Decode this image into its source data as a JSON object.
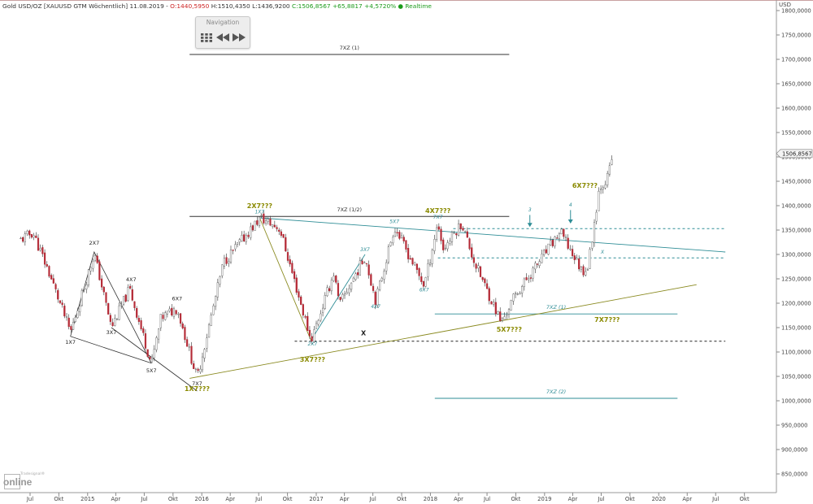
{
  "header": {
    "instrument": "Gold USD/OZ [XAUUSD GTM Wöchentlich] 11.08.2019 -",
    "open": "O:1440,5950",
    "high": "H:1510,4350",
    "low": "L:1436,9200",
    "close": "C:1506,8567",
    "change": "+65,8817",
    "change_pct": "+4,5720%",
    "realtime": "● Realtime"
  },
  "navigation": {
    "title": "Navigation"
  },
  "watermark": {
    "top": "Tradesignal®",
    "main": "online"
  },
  "colors": {
    "up": "#ffffff",
    "down": "#b42a36",
    "wick": "#333333",
    "olive": "#8a8a20",
    "teal": "#2e8d96",
    "label_olive": "#8a8a00"
  },
  "chart_data": {
    "type": "candlestick",
    "currency_label": "USD",
    "y_axis_ticks": [
      "1800,0000",
      "1750,0000",
      "1700,0000",
      "1650,0000",
      "1600,0000",
      "1550,0000",
      "1500,0000",
      "1450,0000",
      "1400,0000",
      "1350,0000",
      "1300,0000",
      "1250,0000",
      "1200,0000",
      "1150,0000",
      "1100,0000",
      "1050,0000",
      "1000,0000",
      "950,0000",
      "900,0000",
      "850,0000"
    ],
    "x_axis_ticks": [
      "Jul",
      "Okt",
      "2015",
      "Apr",
      "Jul",
      "Okt",
      "2016",
      "Apr",
      "Jul",
      "Okt",
      "2017",
      "Apr",
      "Jul",
      "Okt",
      "2018",
      "Apr",
      "Jul",
      "Okt",
      "2019",
      "Apr",
      "Jul",
      "Okt",
      "2020",
      "Apr",
      "Jul",
      "Okt"
    ],
    "last_price_label": "1506,8567",
    "price_path": [
      [
        "2014-06-01",
        1330
      ],
      [
        "2014-07-10",
        1345
      ],
      [
        "2014-09-01",
        1260
      ],
      [
        "2014-11-07",
        1140
      ],
      [
        "2015-01-22",
        1302
      ],
      [
        "2015-03-18",
        1150
      ],
      [
        "2015-05-15",
        1230
      ],
      [
        "2015-07-24",
        1075
      ],
      [
        "2015-08-24",
        1170
      ],
      [
        "2015-10-14",
        1190
      ],
      [
        "2015-12-17",
        1046
      ],
      [
        "2016-03-10",
        1283
      ],
      [
        "2016-07-06",
        1375
      ],
      [
        "2016-09-07",
        1352
      ],
      [
        "2016-12-15",
        1124
      ],
      [
        "2017-02-27",
        1263
      ],
      [
        "2017-03-15",
        1195
      ],
      [
        "2017-06-06",
        1296
      ],
      [
        "2017-07-10",
        1205
      ],
      [
        "2017-09-08",
        1357
      ],
      [
        "2017-12-12",
        1236
      ],
      [
        "2018-01-25",
        1366
      ],
      [
        "2018-02-10",
        1310
      ],
      [
        "2018-04-11",
        1365
      ],
      [
        "2018-05-21",
        1285
      ],
      [
        "2018-08-16",
        1160
      ],
      [
        "2018-09-25",
        1212
      ],
      [
        "2019-02-20",
        1346
      ],
      [
        "2019-05-01",
        1266
      ],
      [
        "2019-05-20",
        1275
      ],
      [
        "2019-06-25",
        1438
      ],
      [
        "2019-07-20",
        1455
      ],
      [
        "2019-08-11",
        1510
      ]
    ],
    "horizontal_lines": [
      {
        "label": "7XZ (1)",
        "y": 1710,
        "x_from": "2015-11-23",
        "x_to": "2018-09-10",
        "style": "solid"
      },
      {
        "label": "7XZ (1/2)",
        "y": 1378,
        "x_from": "2015-11-23",
        "x_to": "2018-09-10",
        "style": "solid"
      },
      {
        "label": "",
        "y": 1353,
        "x_from": "2018-03-15",
        "x_to": "2020-08-01",
        "style": "dashed"
      },
      {
        "label": "",
        "y": 1293,
        "x_from": "2018-01-25",
        "x_to": "2020-08-01",
        "style": "dashed"
      },
      {
        "label": "",
        "y": 1122,
        "x_from": "2016-10-24",
        "x_to": "2020-08-01",
        "style": "dashed"
      },
      {
        "label": "7XZ (1)",
        "y": 1178,
        "x_from": "2018-01-15",
        "x_to": "2020-03-01",
        "style": "solid"
      },
      {
        "label": "7XZ (2)",
        "y": 1005,
        "x_from": "2018-01-15",
        "x_to": "2020-03-01",
        "style": "solid"
      }
    ],
    "trend_lines": [
      {
        "from": [
          "2016-07-04",
          1375
        ],
        "to": [
          "2020-08-01",
          1305
        ]
      },
      {
        "from": [
          "2015-11-23",
          1046
        ],
        "to": [
          "2020-05-01",
          1238
        ]
      }
    ],
    "annotations_major": [
      {
        "text": "2X7???",
        "x": "2016-07-04",
        "y": 1395
      },
      {
        "text": "4X7???",
        "x": "2018-01-25",
        "y": 1385
      },
      {
        "text": "6X7???",
        "x": "2019-05-10",
        "y": 1437
      },
      {
        "text": "7X7???",
        "x": "2019-07-20",
        "y": 1162
      },
      {
        "text": "5X7???",
        "x": "2018-09-10",
        "y": 1142
      },
      {
        "text": "3X7???",
        "x": "2016-12-20",
        "y": 1080
      },
      {
        "text": "1X7???",
        "x": "2015-12-17",
        "y": 1020
      }
    ],
    "annotations_minor": [
      {
        "text": "2X7",
        "x": "2015-01-22",
        "y": 1320
      },
      {
        "text": "4X7",
        "x": "2015-05-20",
        "y": 1245
      },
      {
        "text": "6X7",
        "x": "2015-10-14",
        "y": 1206
      },
      {
        "text": "3X7",
        "x": "2015-03-18",
        "y": 1137
      },
      {
        "text": "1X7",
        "x": "2014-11-07",
        "y": 1117
      },
      {
        "text": "5X7",
        "x": "2015-07-24",
        "y": 1058
      },
      {
        "text": "7X7",
        "x": "2015-12-17",
        "y": 1032
      },
      {
        "text": "X",
        "x": "2017-06-01",
        "y": 1134
      }
    ],
    "annotations_teal": [
      {
        "text": "1X7",
        "x": "2016-07-04",
        "y": 1384
      },
      {
        "text": "2X7",
        "x": "2016-12-20",
        "y": 1113
      },
      {
        "text": "3X7",
        "x": "2017-06-06",
        "y": 1307
      },
      {
        "text": "4X7",
        "x": "2017-07-10",
        "y": 1190
      },
      {
        "text": "5X7",
        "x": "2017-09-08",
        "y": 1364
      },
      {
        "text": "6X7",
        "x": "2017-12-12",
        "y": 1224
      },
      {
        "text": "7X7",
        "x": "2018-01-25",
        "y": 1373
      },
      {
        "text": "3",
        "x": "2018-11-15",
        "y": 1388
      },
      {
        "text": "4",
        "x": "2019-03-25",
        "y": 1398
      },
      {
        "text": "X",
        "x": "2019-07-05",
        "y": 1302
      }
    ]
  }
}
